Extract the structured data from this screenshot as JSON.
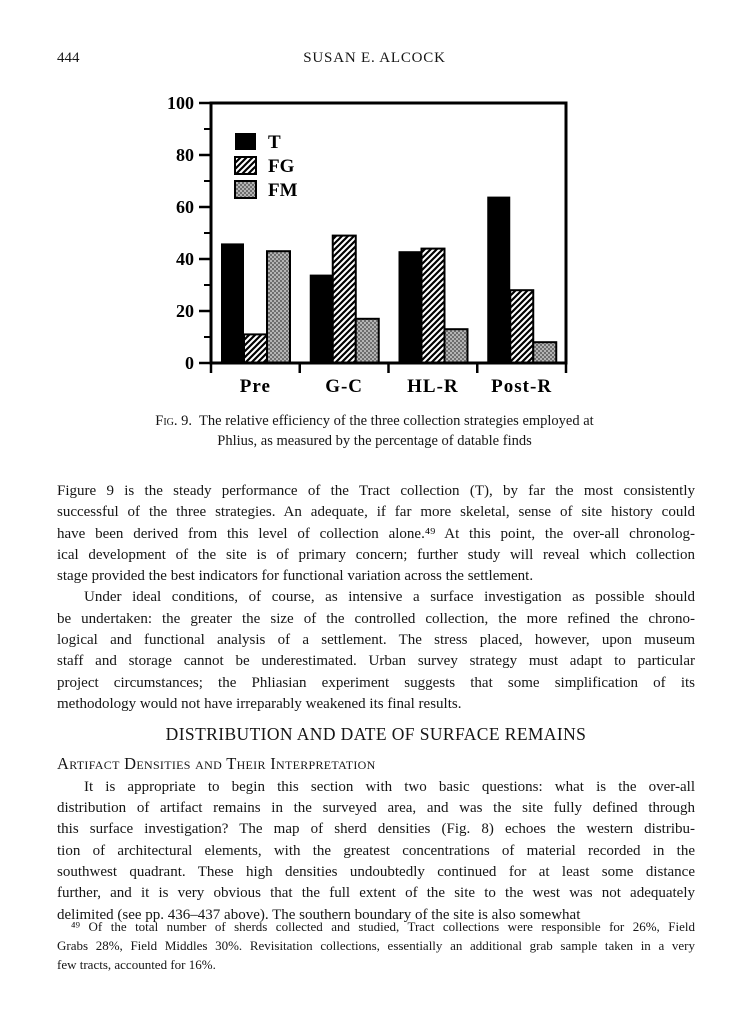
{
  "header": {
    "page_number": "444",
    "running_head": "SUSAN E. ALCOCK"
  },
  "figure": {
    "caption_label": "Fig. 9.",
    "caption_line1": "The relative efficiency of the three collection strategies employed at",
    "caption_line2": "Phlius, as measured by the percentage of datable finds"
  },
  "chart_data": {
    "type": "bar",
    "title": "",
    "xlabel": "",
    "ylabel": "",
    "categories": [
      "Pre",
      "G-C",
      "HL-R",
      "Post-R"
    ],
    "series": [
      {
        "name": "T",
        "pattern": "solid-black",
        "values": [
          46,
          34,
          43,
          64
        ]
      },
      {
        "name": "FG",
        "pattern": "diagonal-hatch",
        "values": [
          11,
          49,
          44,
          28
        ]
      },
      {
        "name": "FM",
        "pattern": "gray-checker",
        "values": [
          43,
          17,
          13,
          8
        ]
      }
    ],
    "ylim": [
      0,
      100
    ],
    "yticks_major": [
      0,
      20,
      40,
      60,
      80,
      100
    ],
    "yticks_minor": [
      10,
      30,
      50,
      70,
      90
    ],
    "grid": false,
    "legend_position": "top-left-inside",
    "frame": "full-box",
    "colors": {
      "ink": "#000000",
      "paper": "#ffffff",
      "checker_dark": "#6e6e6e",
      "checker_light": "#b4b4b4"
    }
  },
  "body": {
    "para1": {
      "indent": false,
      "lines": [
        "Figure 9 is the steady performance of the Tract collection (T), by far the most consistently",
        "successful of the three strategies. An adequate, if far more skeletal, sense of site history could",
        "have been derived from this level of collection alone.⁴⁹ At this point, the over-all chronolog-",
        "ical development of the site is of primary concern; further study will reveal which collection",
        "stage provided the best indicators for functional variation across the settlement."
      ]
    },
    "para2": {
      "indent": true,
      "lines": [
        "Under ideal conditions, of course, as intensive a surface investigation as possible should",
        "be undertaken: the greater the size of the controlled collection, the more refined the chrono-",
        "logical and functional analysis of a settlement. The stress placed, however, upon museum",
        "staff and storage cannot be underestimated. Urban survey strategy must adapt to particular",
        "project circumstances; the Phliasian experiment suggests that some simplification of its",
        "methodology would not have irreparably weakened its final results."
      ]
    },
    "section_heading": "DISTRIBUTION AND DATE OF SURFACE REMAINS",
    "subsection_heading": "Artifact Densities and Their Interpretation",
    "para3": {
      "indent": true,
      "lines": [
        "It is appropriate to begin this section with two basic questions: what is the over-all",
        "distribution of artifact remains in the surveyed area, and was the site fully defined through",
        "this surface investigation? The map of sherd densities (Fig. 8) echoes the western distribu-",
        "tion of architectural elements, with the greatest concentrations of material recorded in the",
        "southwest quadrant. These high densities undoubtedly continued for at least some distance",
        "further, and it is very obvious that the full extent of the site to the west was not adequately",
        "delimited (see pp. 436–437 above). The southern boundary of the site is also somewhat"
      ]
    }
  },
  "footnote": {
    "indent": true,
    "lines": [
      "⁴⁹ Of the total number of sherds collected and studied, Tract collections were responsible for 26%, Field",
      "Grabs 28%, Field Middles 30%. Revisitation collections, essentially an additional grab sample taken in a very",
      "few tracts, accounted for 16%."
    ]
  }
}
